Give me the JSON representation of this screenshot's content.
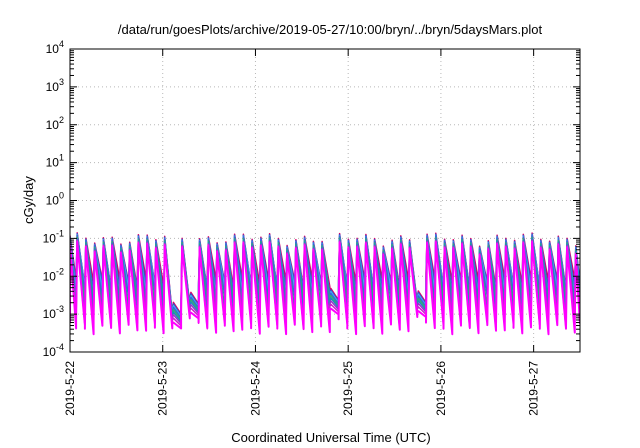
{
  "chart_data": {
    "type": "line",
    "title": "/data/run/goesPlots/archive/2019-05-27/10:00/bryn/../bryn/5daysMars.plot",
    "xlabel": "Coordinated Universal Time (UTC)",
    "ylabel": "cGy/day",
    "yscale": "log",
    "ylim": [
      0.0001,
      10000
    ],
    "xlim": [
      "2019-05-22T00:00",
      "2019-05-27T12:00"
    ],
    "grid": true,
    "legend": "none",
    "y_ticks": [
      {
        "base": "10",
        "exp": "-4"
      },
      {
        "base": "10",
        "exp": "-3"
      },
      {
        "base": "10",
        "exp": "-2"
      },
      {
        "base": "10",
        "exp": "-1"
      },
      {
        "base": "10",
        "exp": "0"
      },
      {
        "base": "10",
        "exp": "1"
      },
      {
        "base": "10",
        "exp": "2"
      },
      {
        "base": "10",
        "exp": "3"
      },
      {
        "base": "10",
        "exp": "4"
      }
    ],
    "x_ticks": [
      "2019-5-22",
      "2019-5-23",
      "2019-5-24",
      "2019-5-25",
      "2019-5-26",
      "2019-5-27"
    ],
    "colors": [
      "#ff00ff",
      "#cc22cc",
      "#9933cc",
      "#2288bb",
      "#33aa77",
      "#3366dd",
      "#44aaee",
      "#3355cc",
      "#dd0066"
    ],
    "sawtooth": {
      "cycles_per_day": 10.6,
      "peak_level": 0.06,
      "trough_level": 0.0012,
      "series_peak_factors": [
        1.0,
        1.05,
        1.1,
        1.2,
        1.3,
        1.45,
        1.5,
        1.6,
        1.7
      ],
      "series_trough_factors": [
        0.35,
        0.45,
        0.6,
        1.0,
        1.5,
        2.4,
        3.2,
        4.2,
        5.5
      ],
      "dips": [
        {
          "start": "2019-05-23T00:55",
          "end": "2019-05-23T03:25",
          "level": 0.0006
        },
        {
          "start": "2019-05-23T06:40",
          "end": "2019-05-23T08:50",
          "level": 0.0011
        },
        {
          "start": "2019-05-24T19:30",
          "end": "2019-05-24T21:00",
          "level": 0.0014
        },
        {
          "start": "2019-05-25T16:55",
          "end": "2019-05-25T18:30",
          "level": 0.0012
        }
      ]
    }
  }
}
